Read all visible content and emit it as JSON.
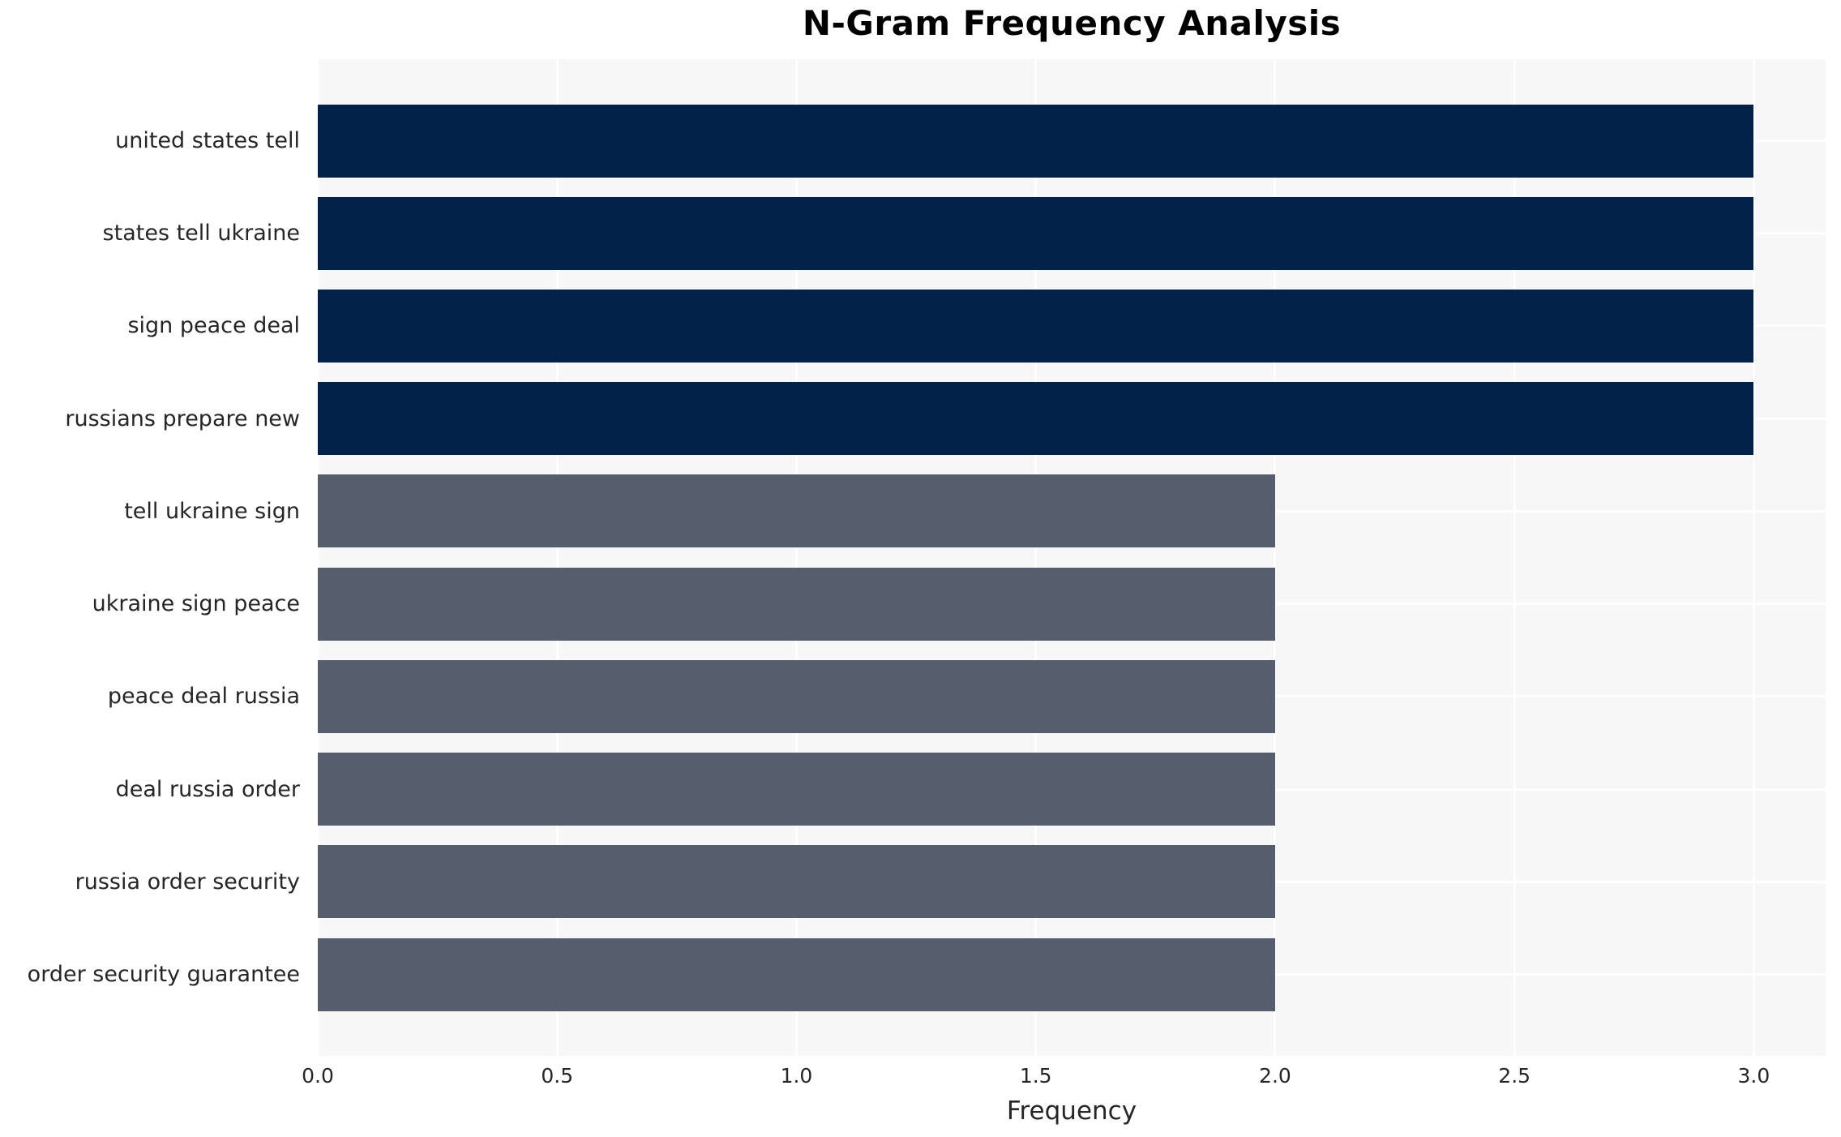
{
  "chart_data": {
    "type": "bar",
    "orientation": "horizontal",
    "title": "N-Gram Frequency Analysis",
    "xlabel": "Frequency",
    "ylabel": "",
    "categories": [
      "united states tell",
      "states tell ukraine",
      "sign peace deal",
      "russians prepare new",
      "tell ukraine sign",
      "ukraine sign peace",
      "peace deal russia",
      "deal russia order",
      "russia order security",
      "order security guarantee"
    ],
    "values": [
      3,
      3,
      3,
      3,
      2,
      2,
      2,
      2,
      2,
      2
    ],
    "bar_colors": [
      "#03224a",
      "#03224a",
      "#03224a",
      "#03224a",
      "#565d6c",
      "#565d6c",
      "#565d6c",
      "#565d6c",
      "#565d6c",
      "#565d6c"
    ],
    "xlim": [
      0,
      3.15
    ],
    "xticks": [
      0,
      0.5,
      1.0,
      1.5,
      2.0,
      2.5,
      3.0
    ],
    "xtick_labels": [
      "0.0",
      "0.5",
      "1.0",
      "1.5",
      "2.0",
      "2.5",
      "3.0"
    ],
    "grid": true,
    "legend": false,
    "colors": {
      "plot_bg": "#f7f7f8",
      "grid_line": "#ffffff",
      "tick_text": "#262626",
      "title_text": "#000000",
      "figure_bg": "#ffffff"
    }
  }
}
